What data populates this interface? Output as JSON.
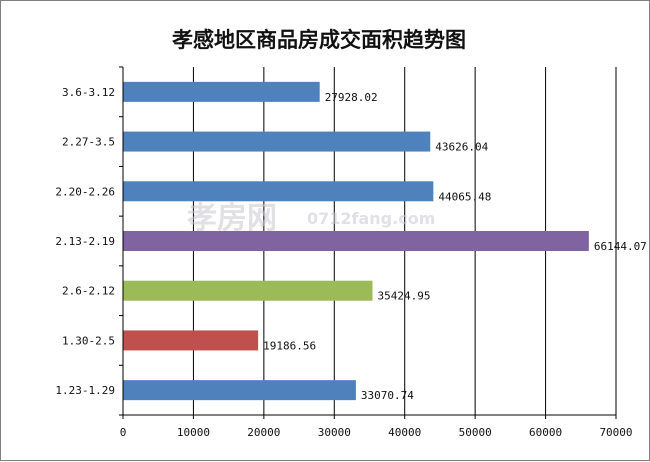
{
  "chart_data": {
    "type": "bar",
    "orientation": "horizontal",
    "title": "孝感地区商品房成交面积趋势图",
    "categories": [
      "1.23-1.29",
      "1.30-2.5",
      "2.6-2.12",
      "2.13-2.19",
      "2.20-2.26",
      "2.27-3.5",
      "3.6-3.12"
    ],
    "values": [
      33070.74,
      19186.56,
      35424.95,
      66144.07,
      44065.48,
      43626.04,
      27928.02
    ],
    "value_labels": [
      "33070.74",
      "19186.56",
      "35424.95",
      "66144.07",
      "44065.48",
      "43626.04",
      "27928.02"
    ],
    "bar_colors": [
      "#4f81bd",
      "#c0504d",
      "#9bbb59",
      "#8064a2",
      "#4f81bd",
      "#4f81bd",
      "#4f81bd"
    ],
    "xlim": [
      0,
      70000
    ],
    "xticks": [
      "0",
      "10000",
      "20000",
      "30000",
      "40000",
      "50000",
      "60000",
      "70000"
    ],
    "xlabel": "",
    "ylabel": "",
    "grid": "vertical",
    "legend": "none"
  },
  "watermark": {
    "brand": "孝房网",
    "url": "0712fang.com"
  }
}
